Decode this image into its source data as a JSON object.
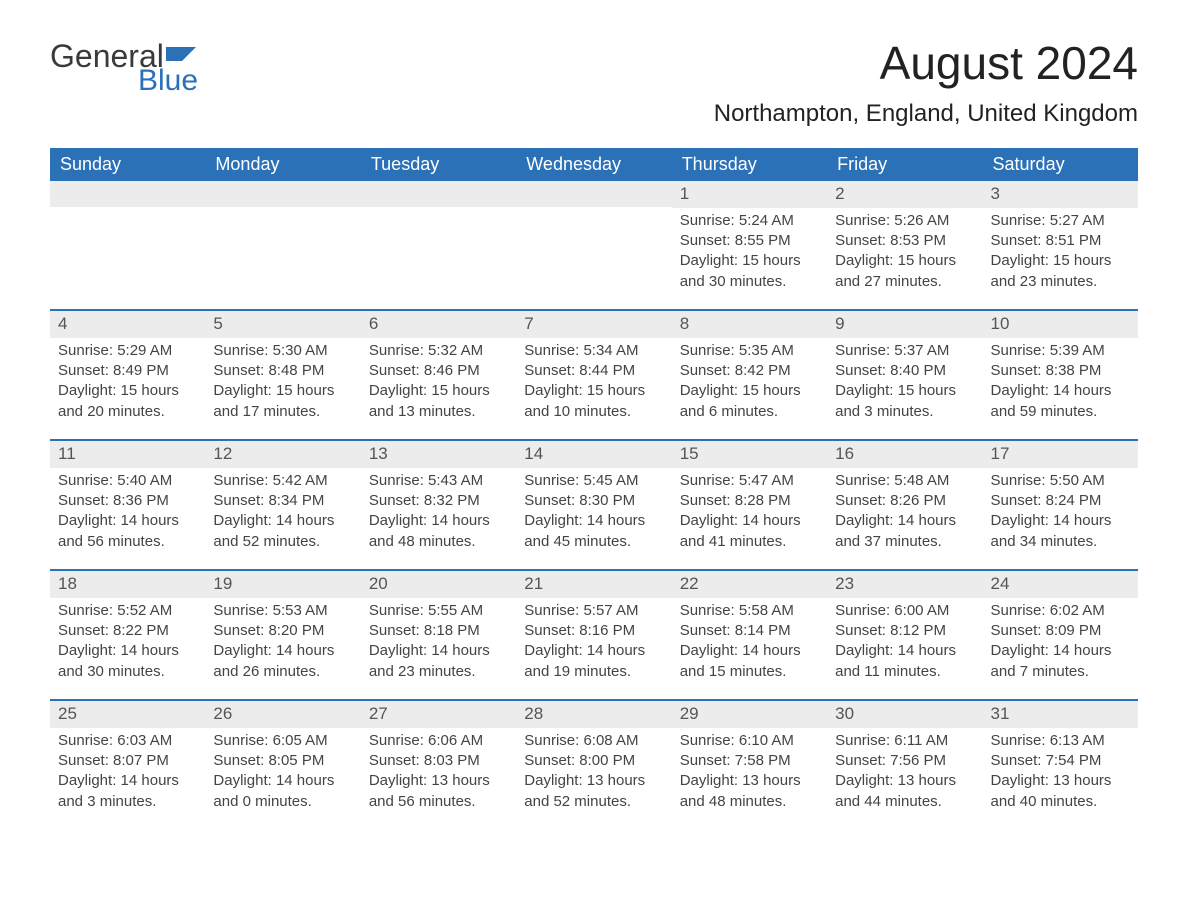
{
  "logo": {
    "text_general": "General",
    "text_blue": "Blue",
    "flag_color": "#2a71b8"
  },
  "title": "August 2024",
  "location": "Northampton, England, United Kingdom",
  "colors": {
    "header_bg": "#2a71b8",
    "header_text": "#ffffff",
    "daynum_bg": "#ececec",
    "body_text": "#444444",
    "page_bg": "#ffffff"
  },
  "typography": {
    "title_fontsize": 46,
    "location_fontsize": 24,
    "dayheader_fontsize": 18,
    "daynum_fontsize": 17,
    "cell_fontsize": 15
  },
  "day_names": [
    "Sunday",
    "Monday",
    "Tuesday",
    "Wednesday",
    "Thursday",
    "Friday",
    "Saturday"
  ],
  "weeks": [
    [
      null,
      null,
      null,
      null,
      {
        "n": "1",
        "sunrise": "Sunrise: 5:24 AM",
        "sunset": "Sunset: 8:55 PM",
        "daylight": "Daylight: 15 hours and 30 minutes."
      },
      {
        "n": "2",
        "sunrise": "Sunrise: 5:26 AM",
        "sunset": "Sunset: 8:53 PM",
        "daylight": "Daylight: 15 hours and 27 minutes."
      },
      {
        "n": "3",
        "sunrise": "Sunrise: 5:27 AM",
        "sunset": "Sunset: 8:51 PM",
        "daylight": "Daylight: 15 hours and 23 minutes."
      }
    ],
    [
      {
        "n": "4",
        "sunrise": "Sunrise: 5:29 AM",
        "sunset": "Sunset: 8:49 PM",
        "daylight": "Daylight: 15 hours and 20 minutes."
      },
      {
        "n": "5",
        "sunrise": "Sunrise: 5:30 AM",
        "sunset": "Sunset: 8:48 PM",
        "daylight": "Daylight: 15 hours and 17 minutes."
      },
      {
        "n": "6",
        "sunrise": "Sunrise: 5:32 AM",
        "sunset": "Sunset: 8:46 PM",
        "daylight": "Daylight: 15 hours and 13 minutes."
      },
      {
        "n": "7",
        "sunrise": "Sunrise: 5:34 AM",
        "sunset": "Sunset: 8:44 PM",
        "daylight": "Daylight: 15 hours and 10 minutes."
      },
      {
        "n": "8",
        "sunrise": "Sunrise: 5:35 AM",
        "sunset": "Sunset: 8:42 PM",
        "daylight": "Daylight: 15 hours and 6 minutes."
      },
      {
        "n": "9",
        "sunrise": "Sunrise: 5:37 AM",
        "sunset": "Sunset: 8:40 PM",
        "daylight": "Daylight: 15 hours and 3 minutes."
      },
      {
        "n": "10",
        "sunrise": "Sunrise: 5:39 AM",
        "sunset": "Sunset: 8:38 PM",
        "daylight": "Daylight: 14 hours and 59 minutes."
      }
    ],
    [
      {
        "n": "11",
        "sunrise": "Sunrise: 5:40 AM",
        "sunset": "Sunset: 8:36 PM",
        "daylight": "Daylight: 14 hours and 56 minutes."
      },
      {
        "n": "12",
        "sunrise": "Sunrise: 5:42 AM",
        "sunset": "Sunset: 8:34 PM",
        "daylight": "Daylight: 14 hours and 52 minutes."
      },
      {
        "n": "13",
        "sunrise": "Sunrise: 5:43 AM",
        "sunset": "Sunset: 8:32 PM",
        "daylight": "Daylight: 14 hours and 48 minutes."
      },
      {
        "n": "14",
        "sunrise": "Sunrise: 5:45 AM",
        "sunset": "Sunset: 8:30 PM",
        "daylight": "Daylight: 14 hours and 45 minutes."
      },
      {
        "n": "15",
        "sunrise": "Sunrise: 5:47 AM",
        "sunset": "Sunset: 8:28 PM",
        "daylight": "Daylight: 14 hours and 41 minutes."
      },
      {
        "n": "16",
        "sunrise": "Sunrise: 5:48 AM",
        "sunset": "Sunset: 8:26 PM",
        "daylight": "Daylight: 14 hours and 37 minutes."
      },
      {
        "n": "17",
        "sunrise": "Sunrise: 5:50 AM",
        "sunset": "Sunset: 8:24 PM",
        "daylight": "Daylight: 14 hours and 34 minutes."
      }
    ],
    [
      {
        "n": "18",
        "sunrise": "Sunrise: 5:52 AM",
        "sunset": "Sunset: 8:22 PM",
        "daylight": "Daylight: 14 hours and 30 minutes."
      },
      {
        "n": "19",
        "sunrise": "Sunrise: 5:53 AM",
        "sunset": "Sunset: 8:20 PM",
        "daylight": "Daylight: 14 hours and 26 minutes."
      },
      {
        "n": "20",
        "sunrise": "Sunrise: 5:55 AM",
        "sunset": "Sunset: 8:18 PM",
        "daylight": "Daylight: 14 hours and 23 minutes."
      },
      {
        "n": "21",
        "sunrise": "Sunrise: 5:57 AM",
        "sunset": "Sunset: 8:16 PM",
        "daylight": "Daylight: 14 hours and 19 minutes."
      },
      {
        "n": "22",
        "sunrise": "Sunrise: 5:58 AM",
        "sunset": "Sunset: 8:14 PM",
        "daylight": "Daylight: 14 hours and 15 minutes."
      },
      {
        "n": "23",
        "sunrise": "Sunrise: 6:00 AM",
        "sunset": "Sunset: 8:12 PM",
        "daylight": "Daylight: 14 hours and 11 minutes."
      },
      {
        "n": "24",
        "sunrise": "Sunrise: 6:02 AM",
        "sunset": "Sunset: 8:09 PM",
        "daylight": "Daylight: 14 hours and 7 minutes."
      }
    ],
    [
      {
        "n": "25",
        "sunrise": "Sunrise: 6:03 AM",
        "sunset": "Sunset: 8:07 PM",
        "daylight": "Daylight: 14 hours and 3 minutes."
      },
      {
        "n": "26",
        "sunrise": "Sunrise: 6:05 AM",
        "sunset": "Sunset: 8:05 PM",
        "daylight": "Daylight: 14 hours and 0 minutes."
      },
      {
        "n": "27",
        "sunrise": "Sunrise: 6:06 AM",
        "sunset": "Sunset: 8:03 PM",
        "daylight": "Daylight: 13 hours and 56 minutes."
      },
      {
        "n": "28",
        "sunrise": "Sunrise: 6:08 AM",
        "sunset": "Sunset: 8:00 PM",
        "daylight": "Daylight: 13 hours and 52 minutes."
      },
      {
        "n": "29",
        "sunrise": "Sunrise: 6:10 AM",
        "sunset": "Sunset: 7:58 PM",
        "daylight": "Daylight: 13 hours and 48 minutes."
      },
      {
        "n": "30",
        "sunrise": "Sunrise: 6:11 AM",
        "sunset": "Sunset: 7:56 PM",
        "daylight": "Daylight: 13 hours and 44 minutes."
      },
      {
        "n": "31",
        "sunrise": "Sunrise: 6:13 AM",
        "sunset": "Sunset: 7:54 PM",
        "daylight": "Daylight: 13 hours and 40 minutes."
      }
    ]
  ]
}
